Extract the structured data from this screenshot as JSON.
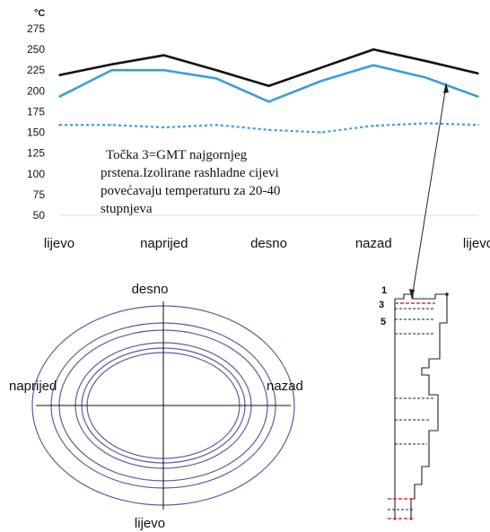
{
  "chart_data": {
    "type": "line",
    "unit_label": "°C",
    "categories": [
      "lijevo",
      "naprijed",
      "desno",
      "nazad",
      "lijevo"
    ],
    "yticks": [
      50,
      75,
      100,
      125,
      150,
      175,
      200,
      225,
      250,
      275
    ],
    "ylim": [
      50,
      275
    ],
    "x": [
      0,
      0.5,
      1,
      1.5,
      2,
      2.5,
      3,
      3.5,
      4
    ],
    "series": [
      {
        "color": "#111111",
        "style": "solid",
        "values": [
          219,
          232,
          243,
          225,
          206,
          228,
          250,
          236,
          221
        ]
      },
      {
        "color": "#3a9fd6",
        "style": "solid",
        "values": [
          193,
          225,
          225,
          215,
          187,
          212,
          231,
          216,
          193
        ]
      },
      {
        "color": "#3a9fd6",
        "style": "dotted",
        "values": [
          159,
          159,
          156,
          159,
          153,
          150,
          158,
          161,
          159
        ]
      }
    ],
    "annotation": [
      "Točka 3=GMT najgornjeg",
      "prstena.Izolirane rashladne cijevi",
      "povećavaju temperaturu za 20-40",
      "stupnjeva"
    ]
  },
  "diagram": {
    "top": "desno",
    "bottom": "lijevo",
    "left": "naprijed",
    "right": "nazad",
    "section_marks": [
      "1",
      "3",
      "5"
    ],
    "line_color": "#5a5f9e",
    "red_color": "#e03030"
  }
}
